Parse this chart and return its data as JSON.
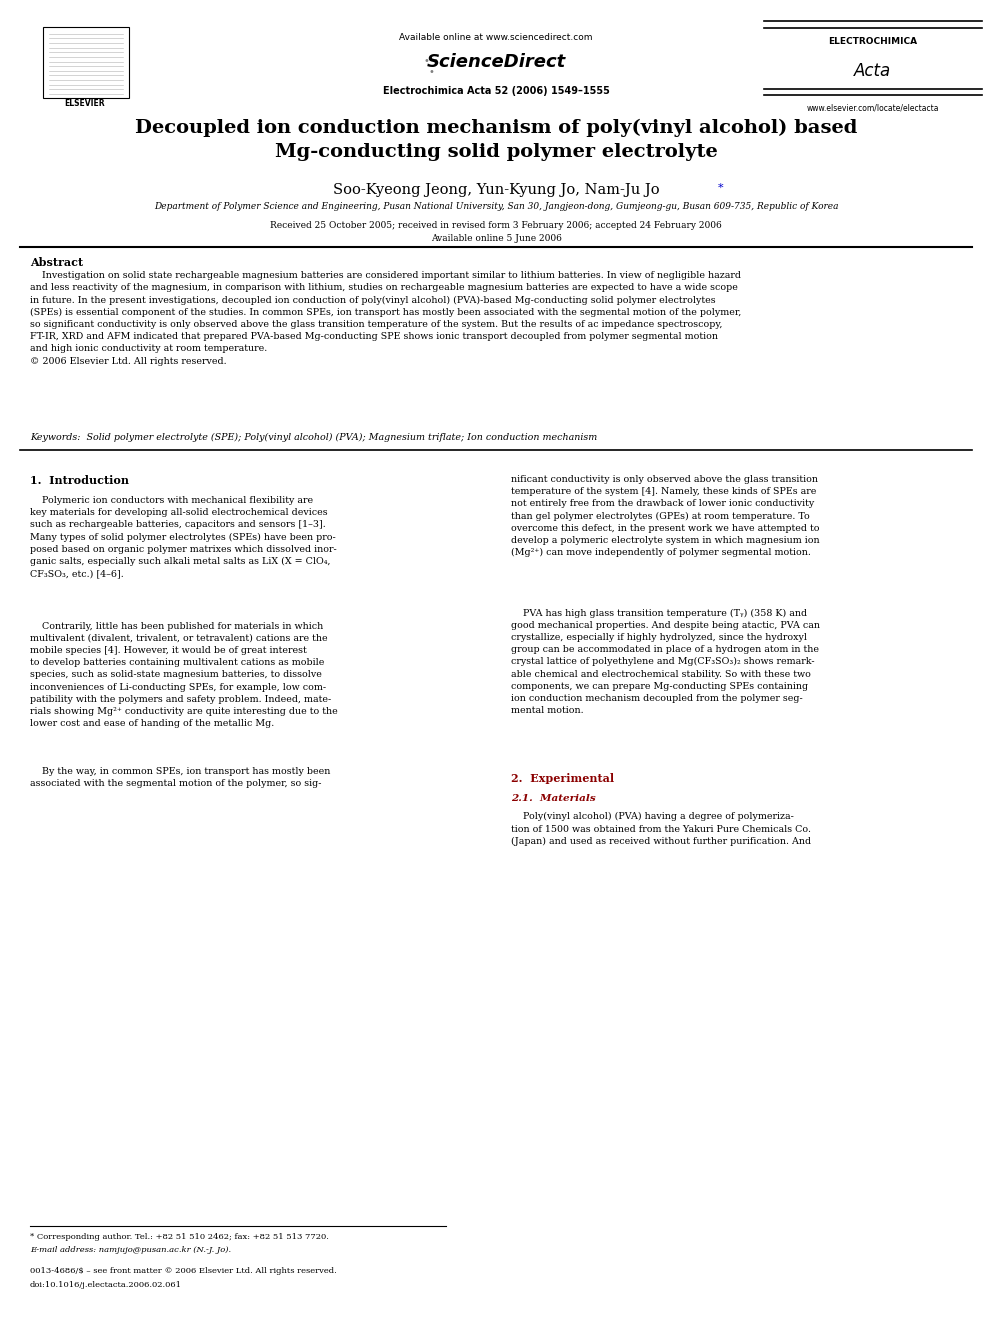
{
  "bg_color": "#ffffff",
  "page_width": 9.92,
  "page_height": 13.23,
  "header": {
    "elsevier_text": "ELSEVIER",
    "available_online": "Available online at www.sciencedirect.com",
    "sciencedirect": "ScienceDirect",
    "journal_line": "Electrochimica Acta 52 (2006) 1549–1555",
    "electrochimica": "ELECTROCHIMICA",
    "acta_script": "Acta",
    "website": "www.elsevier.com/locate/electacta"
  },
  "title": "Decoupled ion conduction mechanism of poly(vinyl alcohol) based\nMg-conducting solid polymer electrolyte",
  "authors_plain": "Soo-Kyeong Jeong, Yun-Kyung Jo, Nam-Ju Jo",
  "affiliation": "Department of Polymer Science and Engineering, Pusan National University, San 30, Jangjeon-dong, Gumjeong-gu, Busan 609-735, Republic of Korea",
  "received": "Received 25 October 2005; received in revised form 3 February 2006; accepted 24 February 2006",
  "available": "Available online 5 June 2006",
  "abstract_title": "Abstract",
  "abstract_text": "    Investigation on solid state rechargeable magnesium batteries are considered important similar to lithium batteries. In view of negligible hazard\nand less reactivity of the magnesium, in comparison with lithium, studies on rechargeable magnesium batteries are expected to have a wide scope\nin future. In the present investigations, decoupled ion conduction of poly(vinyl alcohol) (PVA)-based Mg-conducting solid polymer electrolytes\n(SPEs) is essential component of the studies. In common SPEs, ion transport has mostly been associated with the segmental motion of the polymer,\nso significant conductivity is only observed above the glass transition temperature of the system. But the results of ac impedance spectroscopy,\nFT-IR, XRD and AFM indicated that prepared PVA-based Mg-conducting SPE shows ionic transport decoupled from polymer segmental motion\nand high ionic conductivity at room temperature.\n© 2006 Elsevier Ltd. All rights reserved.",
  "keywords": "Keywords:  Solid polymer electrolyte (SPE); Poly(vinyl alcohol) (PVA); Magnesium triflate; Ion conduction mechanism",
  "section1_title": "1.  Introduction",
  "col1_para1": "    Polymeric ion conductors with mechanical flexibility are\nkey materials for developing all-solid electrochemical devices\nsuch as rechargeable batteries, capacitors and sensors [1–3].\nMany types of solid polymer electrolytes (SPEs) have been pro-\nposed based on organic polymer matrixes which dissolved inor-\nganic salts, especially such alkali metal salts as LiX (X = ClO₄,\nCF₃SO₃, etc.) [4–6].",
  "col1_para2": "    Contrarily, little has been published for materials in which\nmultivalent (divalent, trivalent, or tetravalent) cations are the\nmobile species [4]. However, it would be of great interest\nto develop batteries containing multivalent cations as mobile\nspecies, such as solid-state magnesium batteries, to dissolve\ninconveniences of Li-conducting SPEs, for example, low com-\npatibility with the polymers and safety problem. Indeed, mate-\nrials showing Mg²⁺ conductivity are quite interesting due to the\nlower cost and ease of handing of the metallic Mg.",
  "col1_para3": "    By the way, in common SPEs, ion transport has mostly been\nassociated with the segmental motion of the polymer, so sig-",
  "col2_para1": "nificant conductivity is only observed above the glass transition\ntemperature of the system [4]. Namely, these kinds of SPEs are\nnot entirely free from the drawback of lower ionic conductivity\nthan gel polymer electrolytes (GPEs) at room temperature. To\novercome this defect, in the present work we have attempted to\ndevelop a polymeric electrolyte system in which magnesium ion\n(Mg²⁺) can move independently of polymer segmental motion.",
  "col2_para2": "    PVA has high glass transition temperature (Tᵧ) (358 K) and\ngood mechanical properties. And despite being atactic, PVA can\ncrystallize, especially if highly hydrolyzed, since the hydroxyl\ngroup can be accommodated in place of a hydrogen atom in the\ncrystal lattice of polyethylene and Mg(CF₃SO₃)₂ shows remark-\nable chemical and electrochemical stability. So with these two\ncomponents, we can prepare Mg-conducting SPEs containing\nion conduction mechanism decoupled from the polymer seg-\nmental motion.",
  "section2_title": "2.  Experimental",
  "section2_1_title": "2.1.  Materials",
  "col2_sec2_para": "    Poly(vinyl alcohol) (PVA) having a degree of polymeriza-\ntion of 1500 was obtained from the Yakuri Pure Chemicals Co.\n(Japan) and used as received without further purification. And",
  "footnote_star": "* Corresponding author. Tel.: +82 51 510 2462; fax: +82 51 513 7720.",
  "footnote_email": "E-mail address: namjujo@pusan.ac.kr (N.-J. Jo).",
  "footnote_issn": "0013-4686/$ – see front matter © 2006 Elsevier Ltd. All rights reserved.",
  "footnote_doi": "doi:10.1016/j.electacta.2006.02.061",
  "section_color": "#8B0000",
  "asterisk_color": "#0000cc"
}
